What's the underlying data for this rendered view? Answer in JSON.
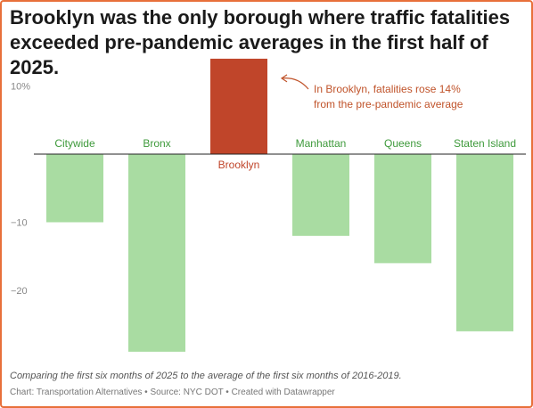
{
  "title": "Brooklyn was the only borough where traffic fatalities exceeded pre-pandemic averages in the first half of 2025.",
  "footnote": "Comparing the first six months of 2025 to the average of the first six months of 2016-2019.",
  "credit": "Chart: Transportation Alternatives • Source: NYC DOT • Created with Datawrapper",
  "colors": {
    "frame": "#e8703a",
    "bar_default": "#a9dca2",
    "bar_highlight": "#c0452a",
    "label_default": "#3e9a3b",
    "label_highlight": "#c0452a",
    "annotation": "#c0532a"
  },
  "chart_data": {
    "type": "bar",
    "categories": [
      "Citywide",
      "Bronx",
      "Brooklyn",
      "Manhattan",
      "Queens",
      "Staten Island"
    ],
    "values": [
      -10,
      -29,
      14,
      -12,
      -16,
      -26
    ],
    "highlight": "Brooklyn",
    "ylim": [
      -29,
      14
    ],
    "yticks": [
      {
        "value": 10,
        "label": "10%"
      },
      {
        "value": -10,
        "label": "−10"
      },
      {
        "value": -20,
        "label": "−20"
      }
    ],
    "grid": false,
    "annotation": {
      "lines": [
        "In Brooklyn, fatalities rose 14%",
        "from the pre-pandemic average"
      ],
      "target": "Brooklyn"
    }
  }
}
